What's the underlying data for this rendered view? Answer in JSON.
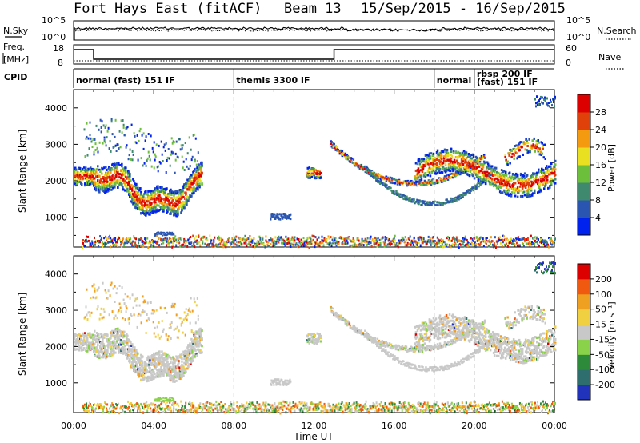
{
  "header": {
    "title": "Fort Hays East (fitACF)",
    "beam_label": "Beam 13",
    "date_range": "15/Sep/2015 - 16/Sep/2015"
  },
  "aux_panels": {
    "nsky_label": "N.Sky",
    "nsearch_label": "N.Search",
    "noise_ticks_left": [
      "10^5",
      "10^0"
    ],
    "noise_ticks_right": [
      "10^5",
      "10^0"
    ],
    "freq_label": "Freq.",
    "freq_units": "[MHz]",
    "freq_ticks": [
      "18",
      "8"
    ],
    "nave_label": "Nave",
    "nave_ticks": [
      "60",
      "0"
    ],
    "cpid_label": "CPID"
  },
  "cpid_segments": [
    {
      "label": "normal (fast) 151 IF",
      "start_h": 0.0,
      "end_h": 8.0
    },
    {
      "label": "themis 3300 IF",
      "start_h": 8.0,
      "end_h": 18.0
    },
    {
      "label": "normal",
      "start_h": 18.0,
      "end_h": 20.0
    },
    {
      "label": "rbsp 200 IF",
      "start_h": 20.0,
      "end_h": 24.0
    },
    {
      "label": "(fast) 151 IF",
      "start_h": 20.0,
      "end_h": 24.0
    }
  ],
  "chart_data": [
    {
      "type": "heatmap",
      "panel": "power",
      "ylabel": "Slant Range [km]",
      "xlabel": "Time UT",
      "x_ticks": [
        "00:00",
        "04:00",
        "08:00",
        "12:00",
        "16:00",
        "20:00",
        "00:00"
      ],
      "y_ticks": [
        1000,
        2000,
        3000,
        4000
      ],
      "xlim_hours": [
        0,
        24
      ],
      "ylim_km": [
        180,
        4500
      ],
      "colorbar_label": "Power [dB]",
      "colorbar_ticks": [
        4,
        8,
        12,
        16,
        20,
        24,
        28
      ],
      "colorbar_colors": [
        "#0022ee",
        "#2a55b0",
        "#3f8a6e",
        "#6cbf3a",
        "#e8e020",
        "#f39a10",
        "#e0400a",
        "#dd0000"
      ],
      "features": [
        {
          "name": "early echo band",
          "t_start": 0.0,
          "t_end": 6.4,
          "r_center": 2000,
          "r_width": 450
        },
        {
          "name": "late echo band",
          "t_start": 17.0,
          "t_end": 24.0,
          "r_center": 2300,
          "r_width": 500
        },
        {
          "name": "arc 1",
          "t_start": 12.8,
          "t_end": 20.5,
          "r_center": 1900
        },
        {
          "name": "arc 2",
          "t_start": 14.5,
          "t_end": 21.0,
          "r_center": 1400
        },
        {
          "name": "near-range scatter",
          "t_start": 1.0,
          "t_end": 24.0,
          "r_center": 300
        }
      ]
    },
    {
      "type": "heatmap",
      "panel": "velocity",
      "ylabel": "Slant Range [km]",
      "xlabel": "Time UT",
      "x_ticks": [
        "00:00",
        "04:00",
        "08:00",
        "12:00",
        "16:00",
        "20:00",
        "00:00"
      ],
      "y_ticks": [
        1000,
        2000,
        3000,
        4000
      ],
      "xlim_hours": [
        0,
        24
      ],
      "ylim_km": [
        180,
        4500
      ],
      "colorbar_label": "Velocity [m s⁻¹]",
      "colorbar_ticks": [
        200,
        100,
        50,
        15,
        -15,
        -50,
        -100,
        -200
      ],
      "colorbar_colors": [
        "#2233bb",
        "#2f6e6e",
        "#2c8a3a",
        "#8ad24a",
        "#c8c8c8",
        "#f0d040",
        "#f0a020",
        "#ef5a10",
        "#dd0000"
      ]
    }
  ],
  "footer": {
    "xlabel": "Time UT"
  }
}
